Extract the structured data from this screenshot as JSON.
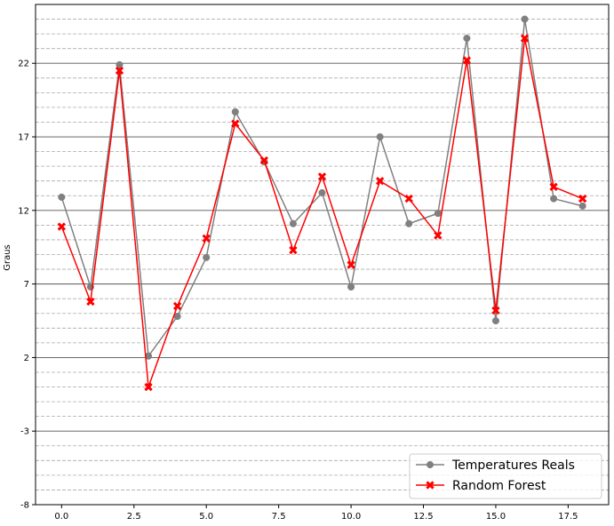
{
  "chart_data": {
    "type": "line",
    "ylabel": "Graus",
    "xlabel": "",
    "xlim": [
      -0.9,
      18.9
    ],
    "ylim": [
      -8,
      26
    ],
    "xticks": [
      0.0,
      2.5,
      5.0,
      7.5,
      10.0,
      12.5,
      15.0,
      17.5
    ],
    "xtick_labels": [
      "0.0",
      "2.5",
      "5.0",
      "7.5",
      "10.0",
      "12.5",
      "15.0",
      "17.5"
    ],
    "yticks": [
      -8,
      -3,
      2,
      7,
      12,
      17,
      22
    ],
    "ytick_labels": [
      "-8",
      "-3",
      "2",
      "7",
      "12",
      "17",
      "22"
    ],
    "major_grid": "solid",
    "minor_grid": "dashed",
    "legend_position": "bottom-right",
    "x": [
      0,
      1,
      2,
      3,
      4,
      5,
      6,
      7,
      8,
      9,
      10,
      11,
      12,
      13,
      14,
      15,
      16,
      17,
      18
    ],
    "series": [
      {
        "name": "Temperatures Reals",
        "color": "#808080",
        "marker": "circle",
        "values": [
          12.9,
          6.8,
          21.9,
          2.1,
          4.8,
          8.8,
          18.7,
          15.3,
          11.1,
          13.2,
          6.8,
          17.0,
          11.1,
          11.8,
          23.7,
          4.5,
          25.0,
          12.8,
          12.3
        ]
      },
      {
        "name": "Random Forest",
        "color": "#ff0000",
        "marker": "x",
        "values": [
          10.9,
          5.8,
          21.5,
          0.0,
          5.5,
          10.1,
          17.9,
          15.4,
          9.3,
          14.3,
          8.3,
          14.0,
          12.8,
          10.3,
          22.2,
          5.2,
          23.7,
          13.6,
          12.8
        ]
      }
    ]
  }
}
